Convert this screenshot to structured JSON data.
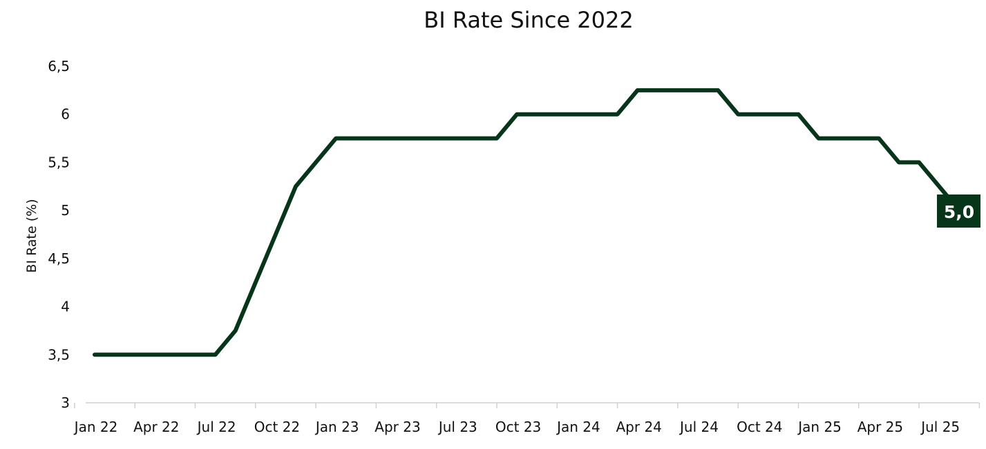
{
  "chart_data": {
    "type": "line",
    "title": "BI Rate Since 2022",
    "xlabel": "",
    "ylabel": "BI Rate (%)",
    "ylim": [
      3,
      6.5
    ],
    "y_ticks": [
      "3",
      "3,5",
      "4",
      "4,5",
      "5",
      "5,5",
      "6",
      "6,5"
    ],
    "y_tick_values": [
      3,
      3.5,
      4,
      4.5,
      5,
      5.5,
      6,
      6.5
    ],
    "x_ticks": [
      "Jan 22",
      "Apr 22",
      "Jul 22",
      "Oct 22",
      "Jan 23",
      "Apr 23",
      "Jul 23",
      "Oct 23",
      "Jan 24",
      "Apr 24",
      "Jul 24",
      "Oct 24",
      "Jan 25",
      "Apr 25",
      "Jul 25"
    ],
    "grid": false,
    "legend": "none",
    "line_color": "#06351a",
    "series": [
      {
        "x": [
          "2022-01",
          "2022-02",
          "2022-03",
          "2022-04",
          "2022-05",
          "2022-06",
          "2022-07",
          "2022-08",
          "2022-09",
          "2022-10",
          "2022-11",
          "2022-12",
          "2023-01",
          "2023-02",
          "2023-03",
          "2023-04",
          "2023-05",
          "2023-06",
          "2023-07",
          "2023-08",
          "2023-09",
          "2023-10",
          "2023-11",
          "2023-12",
          "2024-01",
          "2024-02",
          "2024-03",
          "2024-04",
          "2024-05",
          "2024-06",
          "2024-07",
          "2024-08",
          "2024-09",
          "2024-10",
          "2024-11",
          "2024-12",
          "2025-01",
          "2025-02",
          "2025-03",
          "2025-04",
          "2025-05",
          "2025-06",
          "2025-07",
          "2025-08"
        ],
        "values": [
          3.5,
          3.5,
          3.5,
          3.5,
          3.5,
          3.5,
          3.5,
          3.75,
          4.25,
          4.75,
          5.25,
          5.5,
          5.75,
          5.75,
          5.75,
          5.75,
          5.75,
          5.75,
          5.75,
          5.75,
          5.75,
          6.0,
          6.0,
          6.0,
          6.0,
          6.0,
          6.0,
          6.25,
          6.25,
          6.25,
          6.25,
          6.25,
          6.0,
          6.0,
          6.0,
          6.0,
          5.75,
          5.75,
          5.75,
          5.75,
          5.5,
          5.5,
          5.25,
          5.0
        ]
      }
    ],
    "end_label": "5,0"
  }
}
